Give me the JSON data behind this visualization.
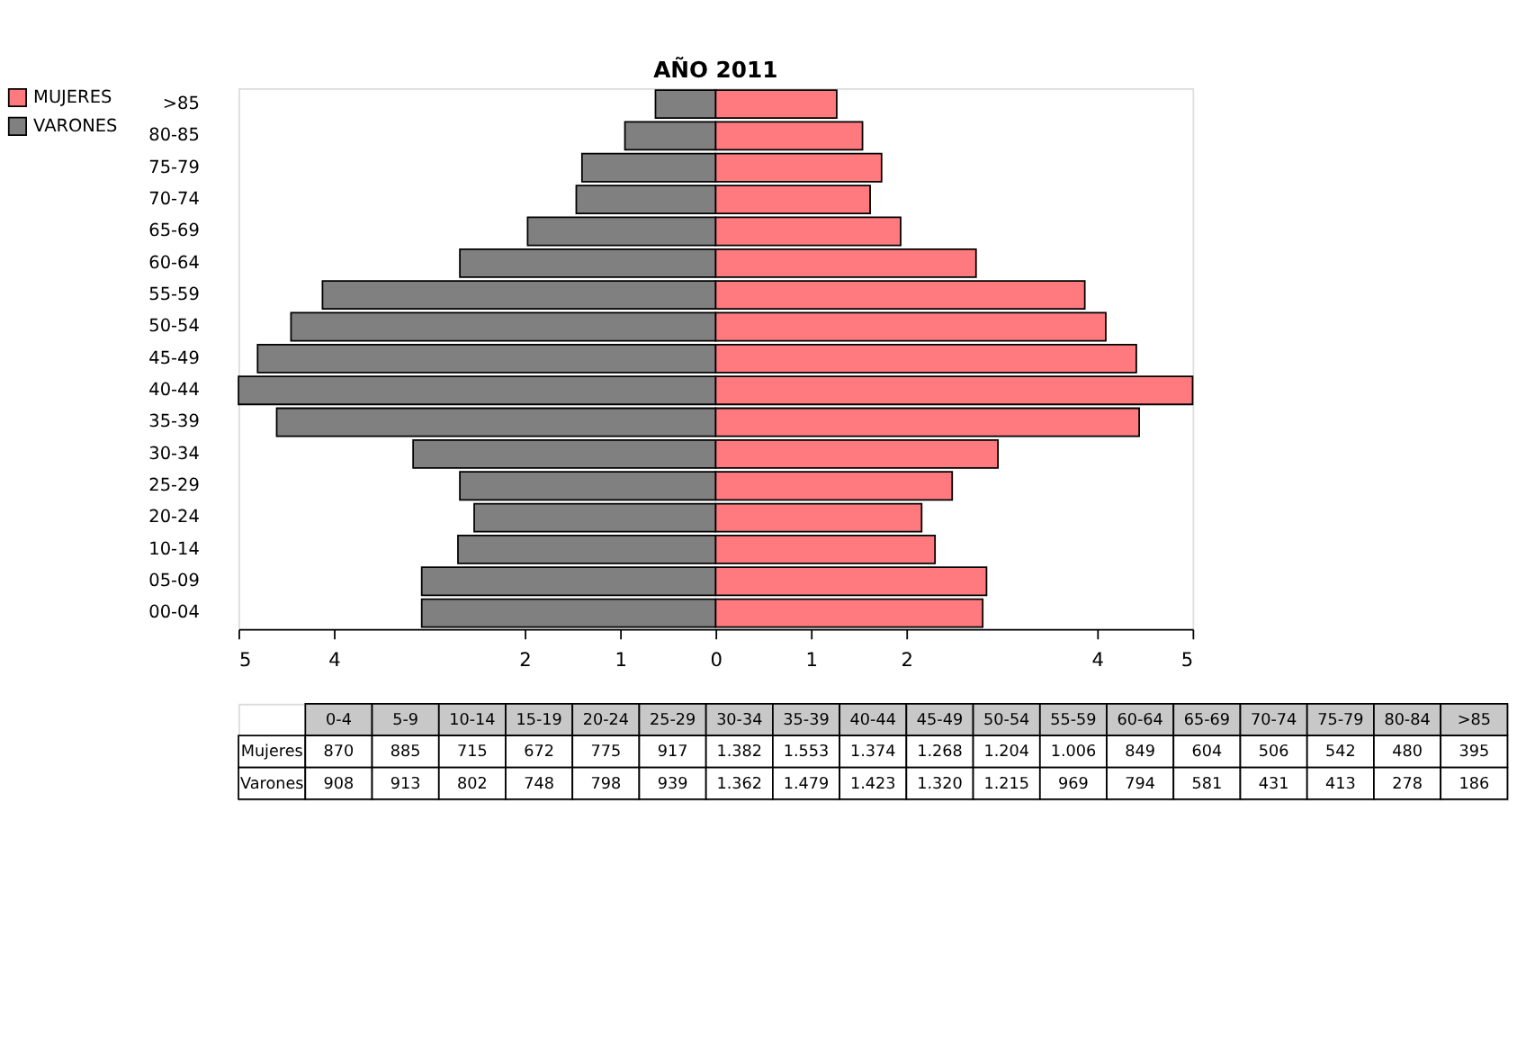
{
  "chart_data": [
    {
      "type": "bar",
      "title": "AÑO 2011",
      "orientation": "horizontal",
      "stacked": true,
      "legend": "left",
      "grid": false,
      "categories": [
        ">85",
        "80-85",
        "75-79",
        "70-74",
        "65-69",
        "60-64",
        "55-59",
        "50-54",
        "45-49",
        "40-44",
        "35-39",
        "30-34",
        "25-29",
        "20-24",
        "10-14",
        "05-09",
        "00-04"
      ],
      "series": [
        {
          "name": "MUJERES",
          "color": "#ff7a7f",
          "values": [
            1.27,
            1.54,
            1.74,
            1.62,
            1.94,
            2.73,
            3.87,
            4.09,
            4.41,
            5.0,
            4.44,
            2.96,
            2.48,
            2.16,
            2.3,
            2.84,
            2.8
          ]
        },
        {
          "name": "VARONES",
          "color": "#808080",
          "values": [
            -0.63,
            -0.95,
            -1.4,
            -1.46,
            -1.97,
            -2.68,
            -4.12,
            -4.45,
            -4.8,
            -5.0,
            -4.6,
            -3.17,
            -2.68,
            -2.53,
            -2.7,
            -3.08,
            -3.08
          ]
        }
      ],
      "xlim": [
        -5,
        5
      ],
      "xticks": [
        {
          "value": -5,
          "label": "5"
        },
        {
          "value": -4,
          "label": "4"
        },
        {
          "value": -2,
          "label": "2"
        },
        {
          "value": -1,
          "label": "1"
        },
        0,
        1,
        2,
        4,
        5
      ]
    },
    {
      "type": "other",
      "data_labels": true,
      "categories": [
        "0-4",
        "5-9",
        "10-14",
        "15-19",
        "20-24",
        "25-29",
        "30-34",
        "35-39",
        "40-44",
        "45-49",
        "50-54",
        "55-59",
        "60-64",
        "65-69",
        "70-74",
        "75-79",
        "80-84",
        ">85"
      ],
      "series": [
        {
          "name": "Mujeres",
          "values": [
            870,
            885,
            715,
            672,
            775,
            917,
            1382,
            1553,
            1374,
            1268,
            1204,
            1006,
            849,
            604,
            506,
            542,
            480,
            395
          ],
          "value_labels": [
            "870",
            "885",
            "715",
            "672",
            "775",
            "917",
            "1.382",
            "1.553",
            "1.374",
            "1.268",
            "1.204",
            "1.006",
            "849",
            "604",
            "506",
            "542",
            "480",
            "395"
          ]
        },
        {
          "name": "Varones",
          "values": [
            908,
            913,
            802,
            748,
            798,
            939,
            1362,
            1479,
            1423,
            1320,
            1215,
            969,
            794,
            581,
            431,
            413,
            278,
            186
          ],
          "value_labels": [
            "908",
            "913",
            "802",
            "748",
            "798",
            "939",
            "1.362",
            "1.479",
            "1.423",
            "1.320",
            "1.215",
            "969",
            "794",
            "581",
            "431",
            "413",
            "278",
            "186"
          ]
        }
      ]
    }
  ]
}
